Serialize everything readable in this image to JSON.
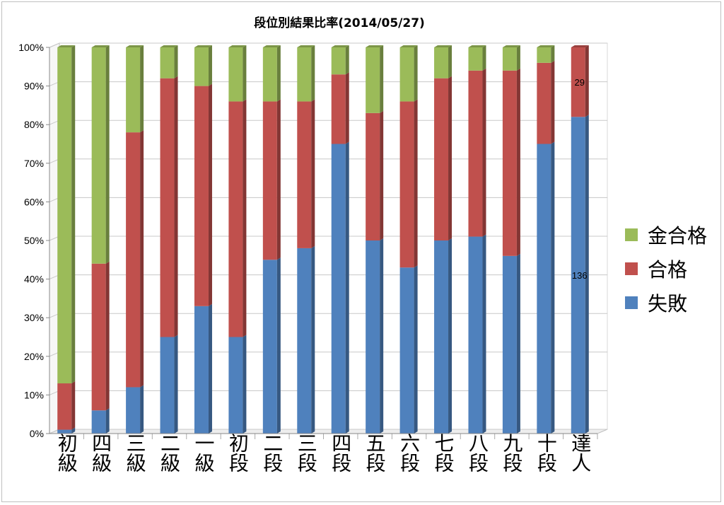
{
  "chart_data": {
    "type": "bar",
    "stacked": "percent",
    "title": "段位別結果比率(2014/05/27)",
    "xlabel": "",
    "ylabel": "",
    "ylim": [
      0,
      100
    ],
    "yticks": [
      "0%",
      "10%",
      "20%",
      "30%",
      "40%",
      "50%",
      "60%",
      "70%",
      "80%",
      "90%",
      "100%"
    ],
    "grid": true,
    "legend_position": "right",
    "categories": [
      "初級",
      "四級",
      "三級",
      "二級",
      "一級",
      "初段",
      "二段",
      "三段",
      "四段",
      "五段",
      "六段",
      "七段",
      "八段",
      "九段",
      "十段",
      "達人"
    ],
    "series": [
      {
        "name": "失敗",
        "color": "#4f81bd",
        "values": [
          1,
          6,
          12,
          25,
          33,
          25,
          45,
          48,
          75,
          50,
          43,
          50,
          51,
          46,
          75,
          82
        ]
      },
      {
        "name": "合格",
        "color": "#c0504d",
        "values": [
          12,
          38,
          66,
          67,
          57,
          61,
          41,
          38,
          18,
          33,
          43,
          42,
          43,
          48,
          21,
          18
        ]
      },
      {
        "name": "金合格",
        "color": "#9bbb59",
        "values": [
          87,
          56,
          22,
          8,
          10,
          14,
          14,
          14,
          7,
          17,
          14,
          8,
          6,
          6,
          4,
          0
        ]
      }
    ],
    "data_labels": [
      {
        "category": "達人",
        "series": "失敗",
        "text": "136"
      },
      {
        "category": "達人",
        "series": "合格",
        "text": "29"
      }
    ]
  }
}
